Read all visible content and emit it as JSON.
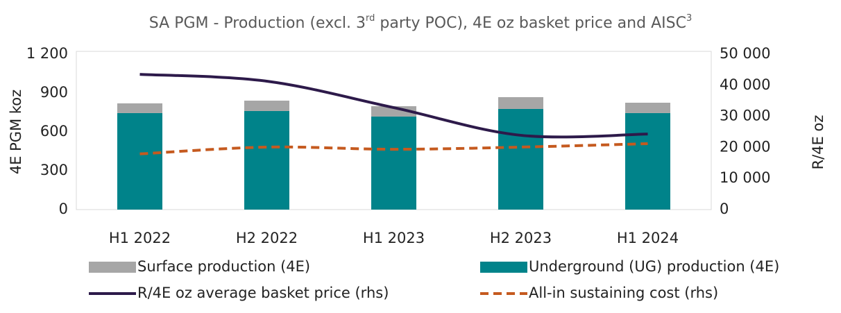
{
  "chart_data": {
    "type": "bar",
    "title": [
      "SA PGM - Production (excl. 3",
      "rd",
      " party POC), 4E oz basket price and AISC",
      "3"
    ],
    "ylabel": "4E PGM koz",
    "y2label": "R/4E oz",
    "categories": [
      "H1 2022",
      "H2 2022",
      "H1 2023",
      "H2 2023",
      "H1 2024"
    ],
    "stacked": true,
    "series": [
      {
        "name": "Underground (UG) production (4E)",
        "type": "bar",
        "color": "#00838a",
        "values": [
          745,
          761,
          718,
          777,
          745
        ]
      },
      {
        "name": "Surface production (4E)",
        "type": "bar",
        "color": "#a6a6a6",
        "values": [
          75,
          80,
          80,
          91,
          80
        ]
      },
      {
        "name": "R/4E oz average basket price (rhs)",
        "type": "line",
        "axis": "y2",
        "color": "#2d1a4a",
        "values": [
          43500,
          41300,
          32800,
          23900,
          24300
        ]
      },
      {
        "name": "All-in sustaining cost (rhs)",
        "type": "line",
        "axis": "y2",
        "dashed": true,
        "color": "#c55a1f",
        "values": [
          17900,
          20100,
          19400,
          20100,
          21200
        ]
      }
    ],
    "ylim": [
      0,
      1200
    ],
    "yticks": [
      0,
      300,
      600,
      900,
      {
        "value": 1200,
        "label": "1 200"
      }
    ],
    "y2lim": [
      0,
      50000
    ],
    "y2ticks": [
      0,
      {
        "value": 10000,
        "label": "10 000"
      },
      {
        "value": 20000,
        "label": "20 000"
      },
      {
        "value": 30000,
        "label": "30 000"
      },
      {
        "value": 40000,
        "label": "40 000"
      },
      {
        "value": 50000,
        "label": "50 000"
      }
    ],
    "legend_order": [
      1,
      0,
      2,
      3
    ]
  }
}
